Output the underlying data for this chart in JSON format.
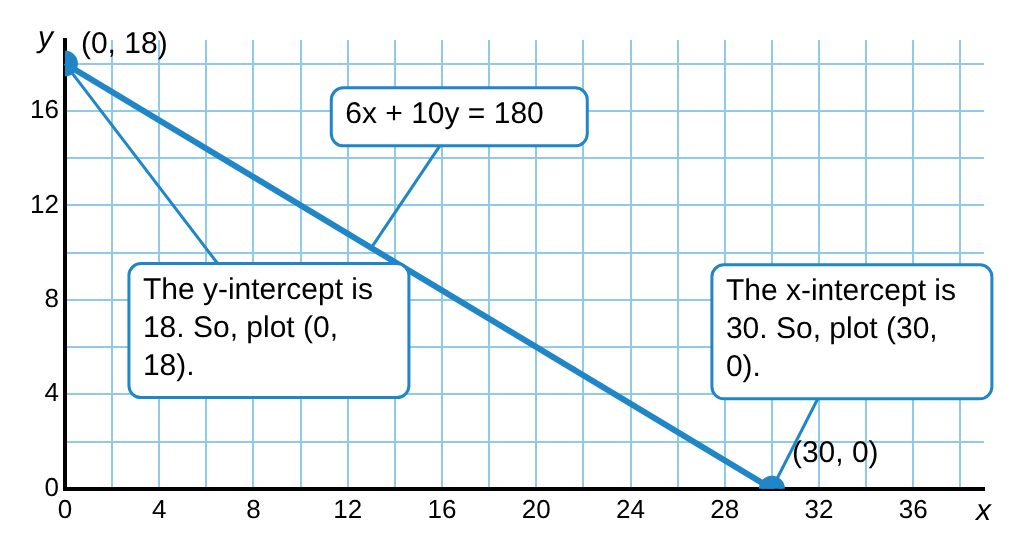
{
  "chart_data": {
    "type": "line",
    "xlabel": "x",
    "ylabel": "y",
    "x": [
      0,
      30
    ],
    "values": [
      18,
      0
    ],
    "color": "#1f86c8",
    "marker": "circle",
    "xlim": [
      0,
      39
    ],
    "ylim": [
      0,
      19
    ],
    "xticks": [
      0,
      {
        "value": 2,
        "label": null
      },
      4,
      {
        "value": 6,
        "label": null
      },
      8,
      {
        "value": 10,
        "label": null
      },
      12,
      {
        "value": 14,
        "label": null
      },
      16,
      {
        "value": 18,
        "label": null
      },
      20,
      {
        "value": 22,
        "label": null
      },
      24,
      {
        "value": 26,
        "label": null
      },
      28,
      {
        "value": 30,
        "label": null
      },
      32,
      {
        "value": 34,
        "label": null
      },
      36,
      {
        "value": 38,
        "label": null
      }
    ],
    "yticks": [
      0,
      {
        "value": 2,
        "label": null
      },
      4,
      {
        "value": 6,
        "label": null
      },
      8,
      {
        "value": 10,
        "label": null
      },
      12,
      {
        "value": 14,
        "label": null
      },
      16,
      {
        "value": 18,
        "label": null
      }
    ],
    "grid": true,
    "legend": false,
    "annotations": [
      {
        "text": "(0, 18)",
        "x": 0,
        "y": 18
      },
      {
        "text": "(30, 0)",
        "x": 30,
        "y": 0
      },
      {
        "text": "6x + 10y = 180",
        "x": 13,
        "y": 10.2
      },
      {
        "text": "The y-intercept is 18. So, plot (0, 18).",
        "x": 0,
        "y": 18
      },
      {
        "text": "The x-intercept is 30. So, plot (30, 0).",
        "x": 30,
        "y": 0
      }
    ]
  }
}
